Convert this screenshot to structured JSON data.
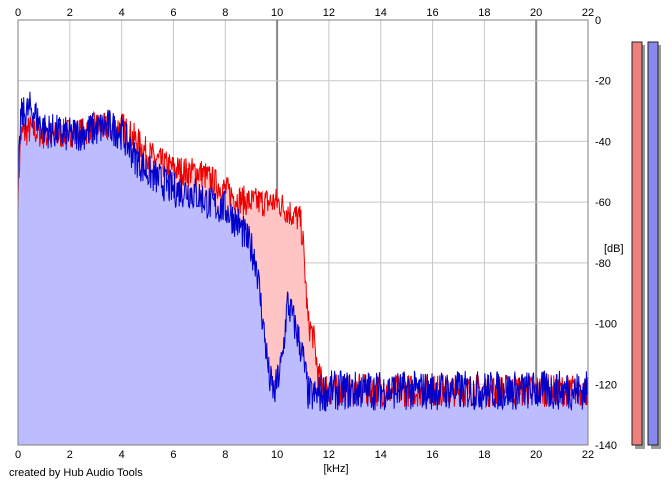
{
  "credit": "created by Hub Audio Tools",
  "chart_data": {
    "type": "area",
    "xlabel": "[kHz]",
    "ylabel": "[dB]",
    "xlim": [
      0,
      22
    ],
    "ylim": [
      -140,
      0
    ],
    "xticks": [
      0,
      2,
      4,
      6,
      8,
      10,
      12,
      14,
      16,
      18,
      20,
      22
    ],
    "yticks": [
      0,
      -20,
      -40,
      -60,
      -80,
      -100,
      -120,
      -140
    ],
    "grid": true,
    "colors": {
      "red_line": "#ee0000",
      "red_fill": "#ffc4c4",
      "blue_line": "#0000cc",
      "blue_fill": "#bcbcff",
      "bar_red": "#f08080",
      "bar_blue": "#8888ee"
    },
    "series": [
      {
        "color": "red",
        "x": [
          0,
          0.1,
          0.5,
          1,
          1.5,
          2,
          2.5,
          3,
          3.5,
          4,
          4.5,
          5,
          5.5,
          6,
          6.5,
          7,
          7.5,
          8,
          8.5,
          9,
          9.5,
          10,
          10.3,
          10.6,
          10.9,
          11.0,
          11.2,
          11.4,
          11.6,
          12,
          13,
          14,
          15,
          16,
          17,
          18,
          19,
          20,
          21,
          22
        ],
        "y": [
          -58,
          -38,
          -36,
          -38,
          -38,
          -37,
          -37,
          -35,
          -36,
          -35,
          -39,
          -44,
          -47,
          -49,
          -50,
          -50,
          -53,
          -56,
          -59,
          -60,
          -60,
          -60,
          -62,
          -64,
          -66,
          -73,
          -100,
          -104,
          -118,
          -122,
          -122,
          -122,
          -122,
          -122,
          -122,
          -122,
          -122,
          -122,
          -122,
          -122
        ]
      },
      {
        "color": "blue",
        "x": [
          0,
          0.1,
          0.5,
          1,
          1.5,
          2,
          2.5,
          3,
          3.5,
          4,
          4.5,
          5,
          5.5,
          6,
          6.5,
          7,
          7.5,
          8,
          8.5,
          9,
          9.2,
          9.5,
          9.7,
          9.9,
          10.2,
          10.4,
          10.6,
          10.8,
          11.0,
          11.2,
          11.4,
          12,
          13,
          14,
          15,
          16,
          17,
          18,
          19,
          20,
          21,
          22
        ],
        "y": [
          -58,
          -32,
          -29,
          -36,
          -37,
          -38,
          -37,
          -36,
          -35,
          -37,
          -45,
          -50,
          -53,
          -56,
          -56,
          -58,
          -61,
          -62,
          -67,
          -75,
          -80,
          -103,
          -118,
          -123,
          -112,
          -93,
          -98,
          -104,
          -111,
          -123,
          -124,
          -122,
          -122,
          -122,
          -122,
          -122,
          -122,
          -122,
          -122,
          -122,
          -122,
          -122
        ]
      }
    ]
  }
}
